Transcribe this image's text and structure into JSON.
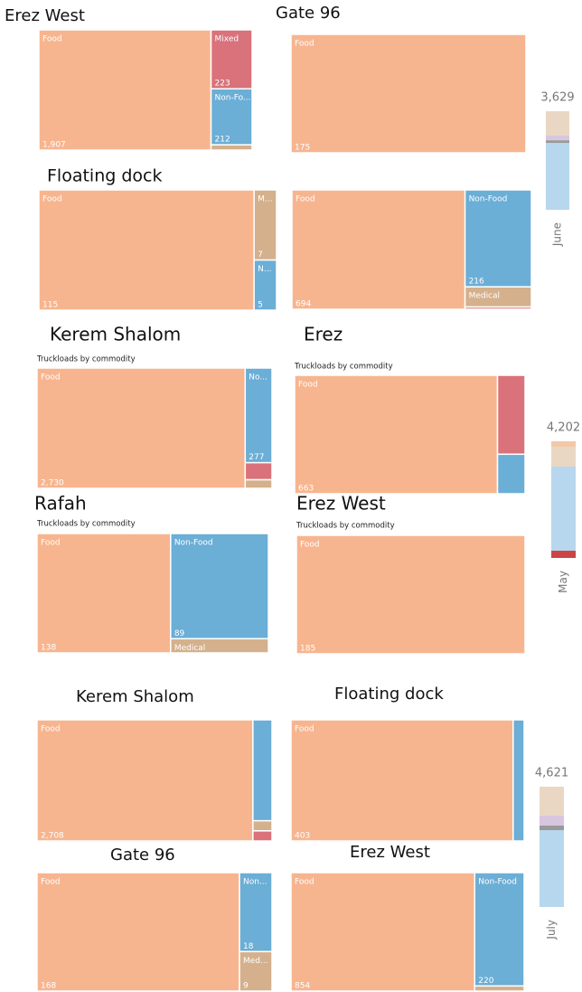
{
  "chart_data": [
    {
      "type": "treemap",
      "title": "Erez West",
      "categories": [
        "Food",
        "Mixed",
        "Non-Fo...",
        null
      ],
      "values": [
        1907,
        223,
        212,
        20
      ],
      "value_labels": [
        "1,907",
        "223",
        "212",
        null
      ],
      "colors": [
        "#f7b58f",
        "#d9727b",
        "#6baed6",
        "#d4b08c"
      ]
    },
    {
      "type": "treemap",
      "title": "Gate 96",
      "categories": [
        "Food"
      ],
      "values": [
        175
      ],
      "value_labels": [
        "175"
      ],
      "colors": [
        "#f7b58f"
      ]
    },
    {
      "type": "treemap",
      "title": "Floating dock",
      "categories": [
        "Food",
        "M...",
        "N..."
      ],
      "values": [
        115,
        7,
        5
      ],
      "value_labels": [
        "115",
        "7",
        "5"
      ],
      "colors": [
        "#f7b58f",
        "#d4b08c",
        "#6baed6"
      ]
    },
    {
      "type": "treemap",
      "categories": [
        "Food",
        "Non-Food",
        "Medical",
        null
      ],
      "values": [
        694,
        216,
        45,
        5
      ],
      "value_labels": [
        "694",
        "216",
        null,
        null
      ],
      "colors": [
        "#f7b58f",
        "#6baed6",
        "#d4b08c",
        "#d9727b"
      ]
    },
    {
      "type": "treemap",
      "title": "Kerem Shalom",
      "subtitle": "Truckloads by commodity",
      "categories": [
        "Food",
        "No...",
        null,
        null
      ],
      "values": [
        2730,
        277,
        50,
        25
      ],
      "value_labels": [
        "2,730",
        "277",
        null,
        null
      ],
      "colors": [
        "#f7b58f",
        "#6baed6",
        "#d9727b",
        "#d4b08c"
      ]
    },
    {
      "type": "treemap",
      "title": "Erez",
      "subtitle": "Truckloads by commodity",
      "categories": [
        "Food",
        null,
        null
      ],
      "values": [
        663,
        60,
        30
      ],
      "value_labels": [
        "663",
        null,
        null
      ],
      "colors": [
        "#f7b58f",
        "#d9727b",
        "#6baed6"
      ]
    },
    {
      "type": "treemap",
      "title": "Rafah",
      "subtitle": "Truckloads by commodity",
      "categories": [
        "Food",
        "Non-Food",
        "Medical"
      ],
      "values": [
        138,
        89,
        12
      ],
      "value_labels": [
        "138",
        "89",
        null
      ],
      "colors": [
        "#f7b58f",
        "#6baed6",
        "#d4b08c"
      ]
    },
    {
      "type": "treemap",
      "title": "Erez West",
      "subtitle": "Truckloads by commodity",
      "categories": [
        "Food"
      ],
      "values": [
        185
      ],
      "value_labels": [
        "185"
      ],
      "colors": [
        "#f7b58f"
      ]
    },
    {
      "type": "treemap",
      "title": "Kerem Shalom",
      "categories": [
        "Food",
        null,
        null,
        null
      ],
      "values": [
        2708,
        200,
        20,
        20
      ],
      "value_labels": [
        "2,708",
        null,
        null,
        null
      ],
      "colors": [
        "#f7b58f",
        "#6baed6",
        "#d4b08c",
        "#d9727b"
      ]
    },
    {
      "type": "treemap",
      "title": "Floating dock",
      "categories": [
        "Food",
        null
      ],
      "values": [
        403,
        20
      ],
      "value_labels": [
        "403",
        null
      ],
      "colors": [
        "#f7b58f",
        "#6baed6"
      ]
    },
    {
      "type": "treemap",
      "title": "Gate 96",
      "categories": [
        "Food",
        "Non...",
        "Med..."
      ],
      "values": [
        168,
        18,
        9
      ],
      "value_labels": [
        "168",
        "18",
        "9"
      ],
      "colors": [
        "#f7b58f",
        "#6baed6",
        "#d4b08c"
      ]
    },
    {
      "type": "treemap",
      "title": "Erez West",
      "categories": [
        "Food",
        "Non-Food",
        null
      ],
      "values": [
        854,
        220,
        10
      ],
      "value_labels": [
        "854",
        "220",
        null
      ],
      "colors": [
        "#f7b58f",
        "#6baed6",
        "#d4b08c"
      ]
    },
    {
      "type": "bar",
      "categories": [
        "June"
      ],
      "series": [
        {
          "color": "#b7d7ee",
          "values": [
            2460
          ]
        },
        {
          "color": "#9a9a9a",
          "values": [
            100
          ]
        },
        {
          "color": "#d8c6e0",
          "values": [
            170
          ]
        },
        {
          "color": "#ead7c3",
          "values": [
            899
          ]
        }
      ],
      "total": {
        "value": 3629,
        "label": "3,629"
      }
    },
    {
      "type": "bar",
      "categories": [
        "May"
      ],
      "series": [
        {
          "color": "#cc4444",
          "values": [
            260
          ]
        },
        {
          "color": "#b7d7ee",
          "values": [
            3030
          ]
        },
        {
          "color": "#ead7c3",
          "values": [
            716
          ]
        },
        {
          "color": "#f2c8a8",
          "values": [
            196
          ]
        }
      ],
      "total": {
        "value": 4202,
        "label": "4,202"
      }
    },
    {
      "type": "bar",
      "categories": [
        "July"
      ],
      "series": [
        {
          "color": "#b7d7ee",
          "values": [
            2953
          ]
        },
        {
          "color": "#9a9a9a",
          "values": [
            174
          ]
        },
        {
          "color": "#d8c6e0",
          "values": [
            382
          ]
        },
        {
          "color": "#ead7c3",
          "values": [
            1112
          ]
        }
      ],
      "total": {
        "value": 4621,
        "label": "4,621"
      }
    }
  ]
}
